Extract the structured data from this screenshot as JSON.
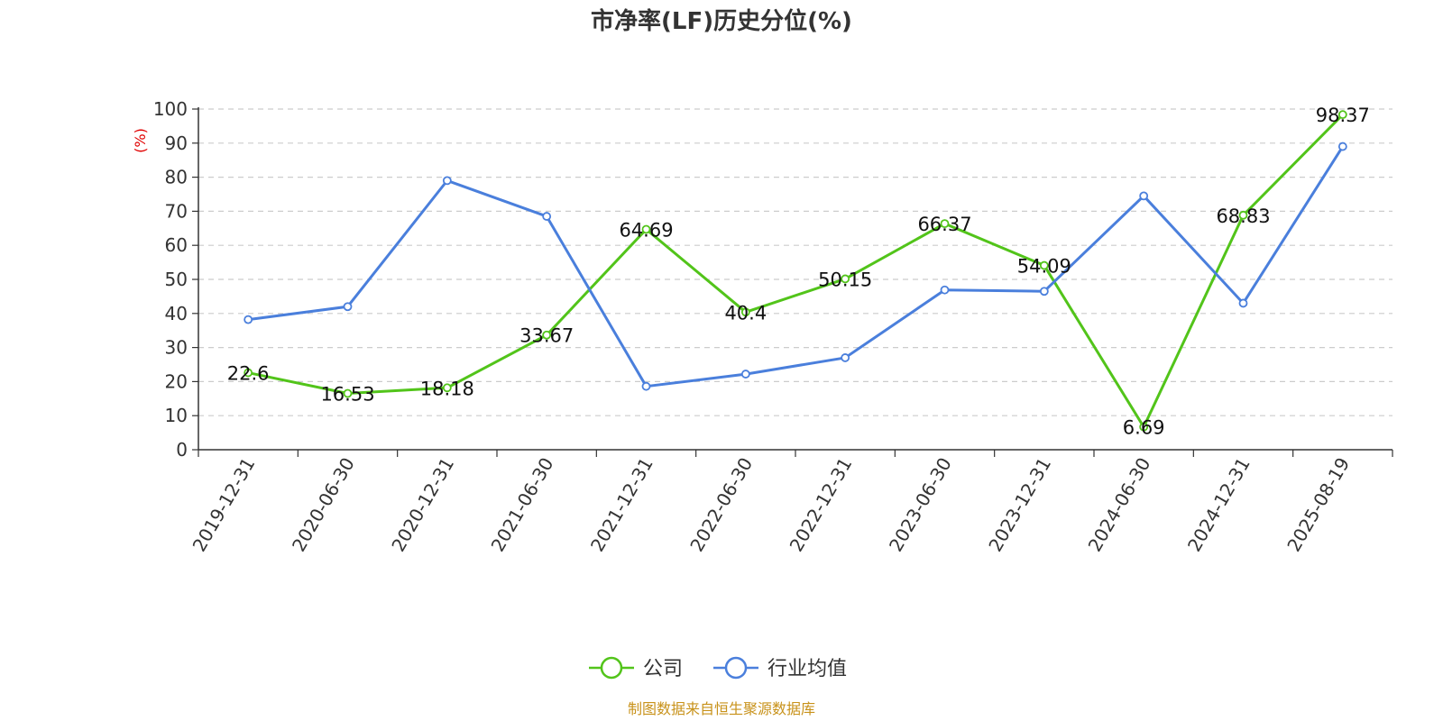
{
  "chart_data": {
    "type": "line",
    "title": "市净率(LF)历史分位(%)",
    "ylabel": "(%)",
    "xlabel": "",
    "ylim": [
      0,
      100
    ],
    "yticks": [
      0,
      10,
      20,
      30,
      40,
      50,
      60,
      70,
      80,
      90,
      100
    ],
    "grid": true,
    "legend_position": "bottom-center",
    "categories": [
      "2019-12-31",
      "2020-06-30",
      "2020-12-31",
      "2021-06-30",
      "2021-12-31",
      "2022-06-30",
      "2022-12-31",
      "2023-06-30",
      "2023-12-31",
      "2024-06-30",
      "2024-12-31",
      "2025-08-19"
    ],
    "series": [
      {
        "name": "公司",
        "color": "#52c41a",
        "values": [
          22.6,
          16.53,
          18.18,
          33.67,
          64.69,
          40.4,
          50.15,
          66.37,
          54.09,
          6.69,
          68.83,
          98.37
        ],
        "data_labels": [
          "22.6",
          "16.53",
          "18.18",
          "33.67",
          "64.69",
          "40.4",
          "50.15",
          "66.37",
          "54.09",
          "6.69",
          "68.83",
          "98.37"
        ]
      },
      {
        "name": "行业均值",
        "color": "#4a7fdc",
        "values": [
          38.2,
          42.0,
          79.0,
          68.5,
          18.6,
          22.2,
          27.0,
          46.9,
          46.5,
          74.5,
          43.0,
          89.0
        ]
      }
    ],
    "source": "制图数据来自恒生聚源数据库"
  }
}
